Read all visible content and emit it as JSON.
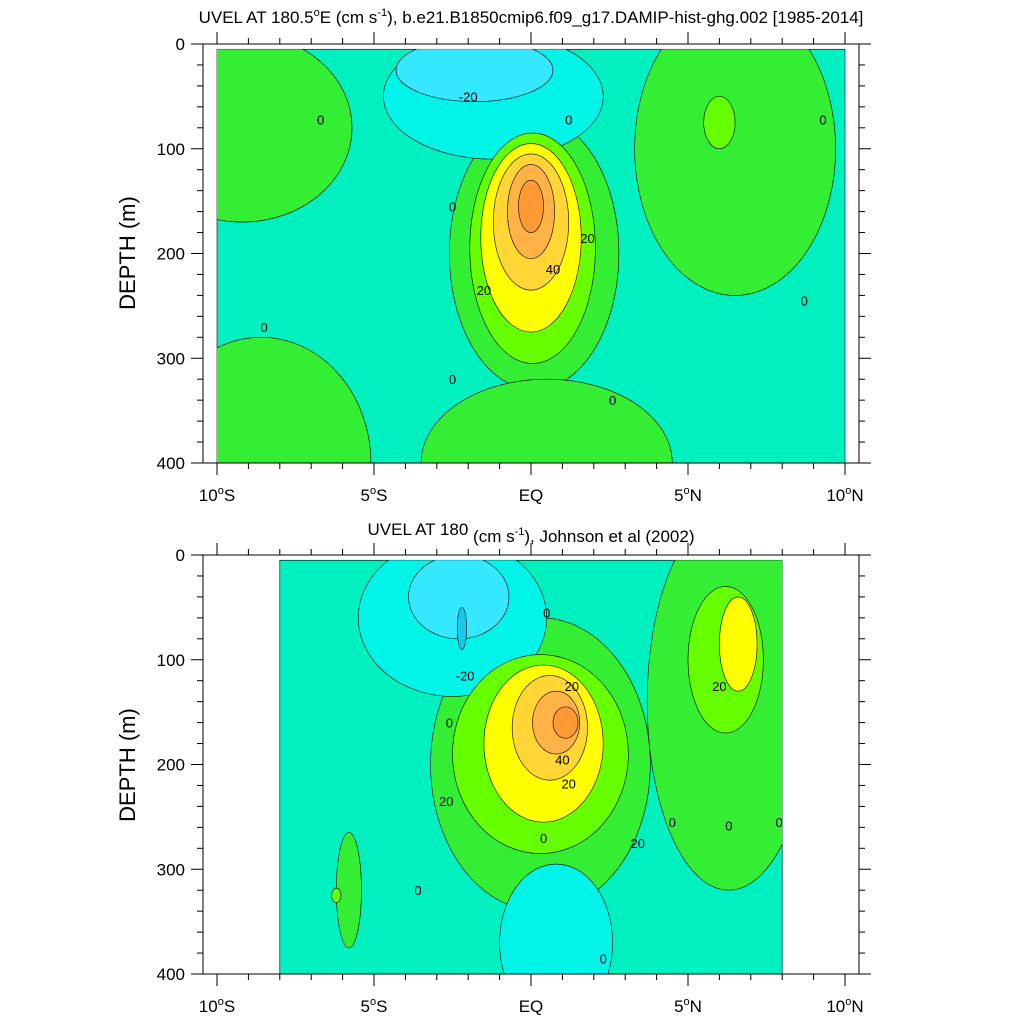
{
  "colors": {
    "level_-30": "#1ac8e8",
    "level_-20": "#33e8ff",
    "level_-10": "#00f5e8",
    "level_0": "#00f0c0",
    "level_10": "#33ee33",
    "level_20": "#66ff00",
    "level_30": "#ffff00",
    "level_40": "#ffd633",
    "level_50": "#ffb347",
    "level_60": "#ff9933",
    "contour_line": "#000000",
    "missing": "#ffffff"
  },
  "chart_data": [
    {
      "type": "heatmap",
      "title": "UVEL AT 180.5°E (cm s-1), b.e21.B1850cmip6.f09_g17.DAMIP-hist-ghg.002 [1985-2014]",
      "title_parts": {
        "pre": "UVEL AT 180.5",
        "deg": "o",
        "mid": "E (cm s",
        "exp": "-1",
        "post": "), b.e21.B1850cmip6.f09_g17.DAMIP-hist-ghg.002 [1985-2014]"
      },
      "xlabel": "",
      "ylabel": "DEPTH (m)",
      "x_unit": "degrees latitude (negative = S)",
      "y_unit": "m",
      "xlim": [
        -10,
        10
      ],
      "ylim": [
        400,
        0
      ],
      "x_ticks": [
        {
          "value": -10,
          "num": "10",
          "hemi": "S"
        },
        {
          "value": -5,
          "num": "5",
          "hemi": "S"
        },
        {
          "value": 0,
          "num": "EQ",
          "hemi": ""
        },
        {
          "value": 5,
          "num": "5",
          "hemi": "N"
        },
        {
          "value": 10,
          "num": "10",
          "hemi": "N"
        }
      ],
      "y_ticks": [
        0,
        100,
        200,
        300,
        400
      ],
      "data_extent": {
        "lat": [
          -10,
          10
        ],
        "depth": [
          5,
          400
        ]
      },
      "background_level": 0,
      "contour_interval": 10,
      "features": [
        {
          "name": "EUC core",
          "level": 10,
          "lat": 0.1,
          "depth": 200,
          "rx": 2.7,
          "ry": 130
        },
        {
          "name": "EUC core",
          "level": 20,
          "lat": 0.05,
          "depth": 195,
          "rx": 2.0,
          "ry": 110
        },
        {
          "name": "EUC core",
          "level": 30,
          "lat": 0.0,
          "depth": 185,
          "rx": 1.6,
          "ry": 90
        },
        {
          "name": "EUC core",
          "level": 40,
          "lat": 0.0,
          "depth": 170,
          "rx": 1.2,
          "ry": 65
        },
        {
          "name": "EUC core",
          "level": 50,
          "lat": 0.0,
          "depth": 160,
          "rx": 0.75,
          "ry": 45
        },
        {
          "name": "EUC core",
          "level": 60,
          "lat": 0.0,
          "depth": 155,
          "rx": 0.4,
          "ry": 25
        },
        {
          "name": "SEC",
          "level": -10,
          "lat": -1.2,
          "depth": 50,
          "rx": 3.5,
          "ry": 60
        },
        {
          "name": "SEC",
          "level": -20,
          "lat": -1.8,
          "depth": 25,
          "rx": 2.5,
          "ry": 30
        },
        {
          "name": "NECC",
          "level": 10,
          "lat": 6.5,
          "depth": 100,
          "rx": 3.2,
          "ry": 140
        },
        {
          "name": "NECC",
          "level": 20,
          "lat": 6.0,
          "depth": 75,
          "rx": 0.5,
          "ry": 25
        },
        {
          "name": "SSCC west",
          "level": 10,
          "lat": -9.2,
          "depth": 80,
          "rx": 3.5,
          "ry": 90
        },
        {
          "name": "deep",
          "level": 10,
          "lat": -8.6,
          "depth": 400,
          "rx": 3.5,
          "ry": 120
        },
        {
          "name": "deep eq",
          "level": 10,
          "lat": 0.5,
          "depth": 400,
          "rx": 4.0,
          "ry": 80
        }
      ],
      "contour_labels": [
        {
          "text": "0",
          "lat": -6.7,
          "depth": 72
        },
        {
          "text": "-20",
          "lat": -2.0,
          "depth": 50
        },
        {
          "text": "0",
          "lat": 1.2,
          "depth": 72
        },
        {
          "text": "0",
          "lat": 9.3,
          "depth": 72
        },
        {
          "text": "0",
          "lat": -2.5,
          "depth": 155
        },
        {
          "text": "20",
          "lat": 1.8,
          "depth": 185
        },
        {
          "text": "40",
          "lat": 0.7,
          "depth": 215
        },
        {
          "text": "20",
          "lat": -1.5,
          "depth": 235
        },
        {
          "text": "0",
          "lat": -8.5,
          "depth": 270
        },
        {
          "text": "0",
          "lat": 8.7,
          "depth": 245
        },
        {
          "text": "0",
          "lat": -2.5,
          "depth": 320
        },
        {
          "text": "0",
          "lat": 2.6,
          "depth": 340
        }
      ]
    },
    {
      "type": "heatmap",
      "title": "UVEL AT 180 (cm s-1), Johnson et al (2002)",
      "title_parts": {
        "pre": "UVEL AT 180",
        "deg": "",
        "mid": " (cm s",
        "exp": "-1",
        "post": "), Johnson et al (2002)"
      },
      "xlabel": "",
      "ylabel": "DEPTH (m)",
      "x_unit": "degrees latitude (negative = S)",
      "y_unit": "m",
      "xlim": [
        -10,
        10
      ],
      "ylim": [
        400,
        0
      ],
      "x_ticks": [
        {
          "value": -10,
          "num": "10",
          "hemi": "S"
        },
        {
          "value": -5,
          "num": "5",
          "hemi": "S"
        },
        {
          "value": 0,
          "num": "EQ",
          "hemi": ""
        },
        {
          "value": 5,
          "num": "5",
          "hemi": "N"
        },
        {
          "value": 10,
          "num": "10",
          "hemi": "N"
        }
      ],
      "y_ticks": [
        0,
        100,
        200,
        300,
        400
      ],
      "data_extent": {
        "lat": [
          -8,
          8
        ],
        "depth": [
          5,
          400
        ]
      },
      "background_level": 0,
      "contour_interval": 10,
      "features": [
        {
          "name": "EUC core",
          "level": 10,
          "lat": 0.3,
          "depth": 200,
          "rx": 3.5,
          "ry": 140
        },
        {
          "name": "EUC core",
          "level": 20,
          "lat": 0.3,
          "depth": 190,
          "rx": 2.8,
          "ry": 95
        },
        {
          "name": "EUC core",
          "level": 30,
          "lat": 0.4,
          "depth": 180,
          "rx": 1.9,
          "ry": 75
        },
        {
          "name": "EUC core",
          "level": 40,
          "lat": 0.6,
          "depth": 165,
          "rx": 1.2,
          "ry": 50
        },
        {
          "name": "EUC core",
          "level": 50,
          "lat": 0.8,
          "depth": 160,
          "rx": 0.75,
          "ry": 30
        },
        {
          "name": "EUC core",
          "level": 60,
          "lat": 1.1,
          "depth": 160,
          "rx": 0.4,
          "ry": 15
        },
        {
          "name": "SEC",
          "level": -10,
          "lat": -2.5,
          "depth": 60,
          "rx": 3.0,
          "ry": 75
        },
        {
          "name": "SEC",
          "level": -20,
          "lat": -2.3,
          "depth": 40,
          "rx": 1.6,
          "ry": 40
        },
        {
          "name": "SEC",
          "level": -30,
          "lat": -2.2,
          "depth": 70,
          "rx": 0.15,
          "ry": 20
        },
        {
          "name": "NECC",
          "level": 10,
          "lat": 6.3,
          "depth": 140,
          "rx": 2.6,
          "ry": 180
        },
        {
          "name": "NECC",
          "level": 20,
          "lat": 6.2,
          "depth": 100,
          "rx": 1.2,
          "ry": 70
        },
        {
          "name": "NECC",
          "level": 30,
          "lat": 6.6,
          "depth": 85,
          "rx": 0.6,
          "ry": 45
        },
        {
          "name": "deep south",
          "level": -10,
          "lat": 0.8,
          "depth": 370,
          "rx": 1.8,
          "ry": 75
        },
        {
          "name": "deep west",
          "level": 10,
          "lat": -5.8,
          "depth": 320,
          "rx": 0.4,
          "ry": 55
        },
        {
          "name": "deep west",
          "level": 20,
          "lat": -6.2,
          "depth": 325,
          "rx": 0.15,
          "ry": 7
        }
      ],
      "contour_labels": [
        {
          "text": "0",
          "lat": 0.5,
          "depth": 55
        },
        {
          "text": "-20",
          "lat": -2.1,
          "depth": 115
        },
        {
          "text": "20",
          "lat": 1.3,
          "depth": 125
        },
        {
          "text": "20",
          "lat": 6.0,
          "depth": 125
        },
        {
          "text": "0",
          "lat": -2.6,
          "depth": 160
        },
        {
          "text": "40",
          "lat": 1.0,
          "depth": 195
        },
        {
          "text": "20",
          "lat": 1.2,
          "depth": 218
        },
        {
          "text": "20",
          "lat": -2.7,
          "depth": 235
        },
        {
          "text": "0",
          "lat": 0.4,
          "depth": 270
        },
        {
          "text": "0",
          "lat": 4.5,
          "depth": 255
        },
        {
          "text": "0",
          "lat": 6.3,
          "depth": 258
        },
        {
          "text": "0",
          "lat": 7.9,
          "depth": 255
        },
        {
          "text": "20",
          "lat": 3.4,
          "depth": 275
        },
        {
          "text": "0",
          "lat": -3.6,
          "depth": 320
        },
        {
          "text": "0",
          "lat": 2.3,
          "depth": 385
        }
      ]
    }
  ]
}
